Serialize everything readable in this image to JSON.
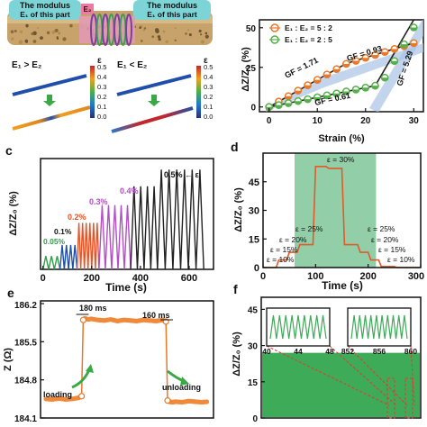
{
  "panel_top_left": {
    "bubble_left": "The modulus",
    "bubble_left_sub": "E₁ of this part",
    "bubble_right": "The modulus",
    "bubble_right_sub": "E₁ of this part",
    "e2_label": "E₂",
    "case1": "E₁ > E₂",
    "case2": "E₁ < E₂",
    "eps_symbol": "ε",
    "colorbar_ticks": [
      "0.5",
      "0.4",
      "0.3",
      "0.2",
      "0.1",
      "0.0"
    ]
  },
  "chart_data": [
    {
      "panel": "b",
      "type": "scatter",
      "ylabel": "ΔZ/Z₀ (%)",
      "xlabel": "Strain (%)",
      "xticks": [
        "0",
        "10",
        "20",
        "30"
      ],
      "yticks": [
        "0",
        "25",
        "50"
      ],
      "xlim": [
        -2,
        32
      ],
      "ylim": [
        -3,
        55
      ],
      "legend_position": "top",
      "colors": {
        "series1": "#e8782a",
        "series2": "#55b04a",
        "fit": "#222222",
        "band": "#a9c3e6"
      },
      "series": [
        {
          "name": "E₁ : E₂ = 5 : 2",
          "x": [
            0,
            2,
            4,
            6,
            8,
            10,
            12,
            14,
            16,
            18,
            20,
            22,
            24,
            26,
            28,
            30
          ],
          "y": [
            0,
            3.4,
            6.8,
            10.3,
            13.7,
            17.1,
            20.5,
            23.9,
            27.2,
            29.1,
            31.0,
            32.8,
            34.7,
            36.6,
            38.4,
            40.3
          ]
        },
        {
          "name": "E₁ : E₂ = 2 : 5",
          "x": [
            0,
            2,
            4,
            6,
            8,
            10,
            12,
            14,
            16,
            18,
            20,
            22,
            24,
            26,
            28,
            30
          ],
          "y": [
            0,
            1.2,
            2.4,
            3.7,
            4.9,
            6.1,
            7.3,
            8.5,
            9.8,
            11.0,
            12.2,
            13.4,
            18.5,
            29.0,
            39.6,
            50.2
          ]
        }
      ],
      "annotations": [
        "GF = 1.71",
        "GF = 0.93",
        "GF = 0.61",
        "GF = 5.29"
      ]
    },
    {
      "panel": "c",
      "type": "line",
      "ylabel": "ΔZ/Z₀ (%)",
      "xlabel": "Time (s)",
      "xticks": [
        "0",
        "200",
        "400",
        "600"
      ],
      "xlim": [
        -10,
        700
      ],
      "ylim": [
        0,
        100
      ],
      "amplitudes": [
        {
          "label": "0.05%",
          "color": "#2f9e48",
          "start": 0,
          "end": 70,
          "cycles": 3,
          "peak": 12
        },
        {
          "label": "0.1%",
          "color": "#1f4fa8",
          "start": 70,
          "end": 140,
          "cycles": 4,
          "peak": 22
        },
        {
          "label": "0.2%",
          "color": "#e8542a",
          "start": 140,
          "end": 230,
          "cycles": 6,
          "peak": 42
        },
        {
          "label": "0.3%",
          "color": "#b24fc4",
          "start": 230,
          "end": 360,
          "cycles": 5,
          "peak": 58
        },
        {
          "label": "0.4%",
          "color": "#222222",
          "start": 360,
          "end": 470,
          "cycles": 4,
          "peak": 75
        },
        {
          "label": "0.5%",
          "color": "#222222",
          "start": 470,
          "end": 660,
          "cycles": 6,
          "peak": 90
        }
      ],
      "annotations": [
        "0.05%",
        "0.1%",
        "0.2%",
        "0.3%",
        "0.4%",
        "0.5% ← ε"
      ]
    },
    {
      "panel": "d",
      "type": "line",
      "ylabel": "ΔZ/Z₀ (%)",
      "xlabel": "Time (s)",
      "xticks": [
        "0",
        "100",
        "200",
        "300"
      ],
      "yticks": [
        "0",
        "15",
        "30",
        "45"
      ],
      "xlim": [
        0,
        300
      ],
      "ylim": [
        0,
        60
      ],
      "band": {
        "x0": 60,
        "x1": 215,
        "color": "#7fc79a"
      },
      "x": [
        0,
        25,
        30,
        45,
        50,
        65,
        70,
        95,
        100,
        120,
        125,
        150,
        155,
        180,
        185,
        200,
        205,
        220,
        225,
        250,
        255,
        300
      ],
      "y": [
        0,
        0,
        4,
        4,
        8,
        8,
        12,
        12,
        53,
        53,
        52,
        52,
        12,
        12,
        8,
        8,
        4,
        4,
        0.5,
        0.5,
        0,
        0
      ],
      "annotations": [
        "ε = 10%",
        "ε = 15%",
        "ε = 20%",
        "ε = 25%",
        "ε = 30%",
        "ε = 25%",
        "ε = 20%",
        "ε = 15%",
        "ε = 10%"
      ]
    },
    {
      "panel": "e",
      "type": "line",
      "ylabel": "Z (Ω)",
      "yticks": [
        "184.1",
        "184.8",
        "185.5",
        "186.2"
      ],
      "ylim": [
        184.1,
        186.25
      ],
      "xlim": [
        0,
        100
      ],
      "x": [
        0,
        4,
        8,
        12,
        16,
        20,
        22,
        23,
        24,
        26,
        28,
        32,
        36,
        40,
        44,
        48,
        52,
        56,
        60,
        64,
        68,
        72,
        74,
        75,
        76,
        78,
        80,
        84,
        88,
        92,
        96,
        100
      ],
      "y": [
        184.45,
        184.44,
        184.46,
        184.44,
        184.45,
        184.47,
        184.5,
        185.9,
        185.93,
        185.91,
        185.92,
        185.9,
        185.89,
        185.91,
        185.88,
        185.9,
        185.89,
        185.88,
        185.9,
        185.89,
        185.88,
        185.9,
        185.87,
        184.42,
        184.4,
        184.39,
        184.4,
        184.39,
        184.41,
        184.4,
        184.39,
        184.4
      ],
      "annotations": [
        "180 ms",
        "160 ms",
        "loading",
        "unloading"
      ]
    },
    {
      "panel": "f",
      "type": "area",
      "ylabel": "ΔZ/Z₀ (%)",
      "yticks": [
        "0",
        "15",
        "30",
        "45"
      ],
      "ylim": [
        0,
        50
      ],
      "envelope": [
        0,
        27
      ],
      "inset_left_xticks": [
        "40",
        "44",
        "48"
      ],
      "inset_right_xticks": [
        "852",
        "856",
        "860"
      ],
      "inset_left_cycles": 9,
      "inset_right_cycles": 10
    }
  ],
  "panel_letters": [
    "c",
    "d",
    "e",
    "f"
  ]
}
